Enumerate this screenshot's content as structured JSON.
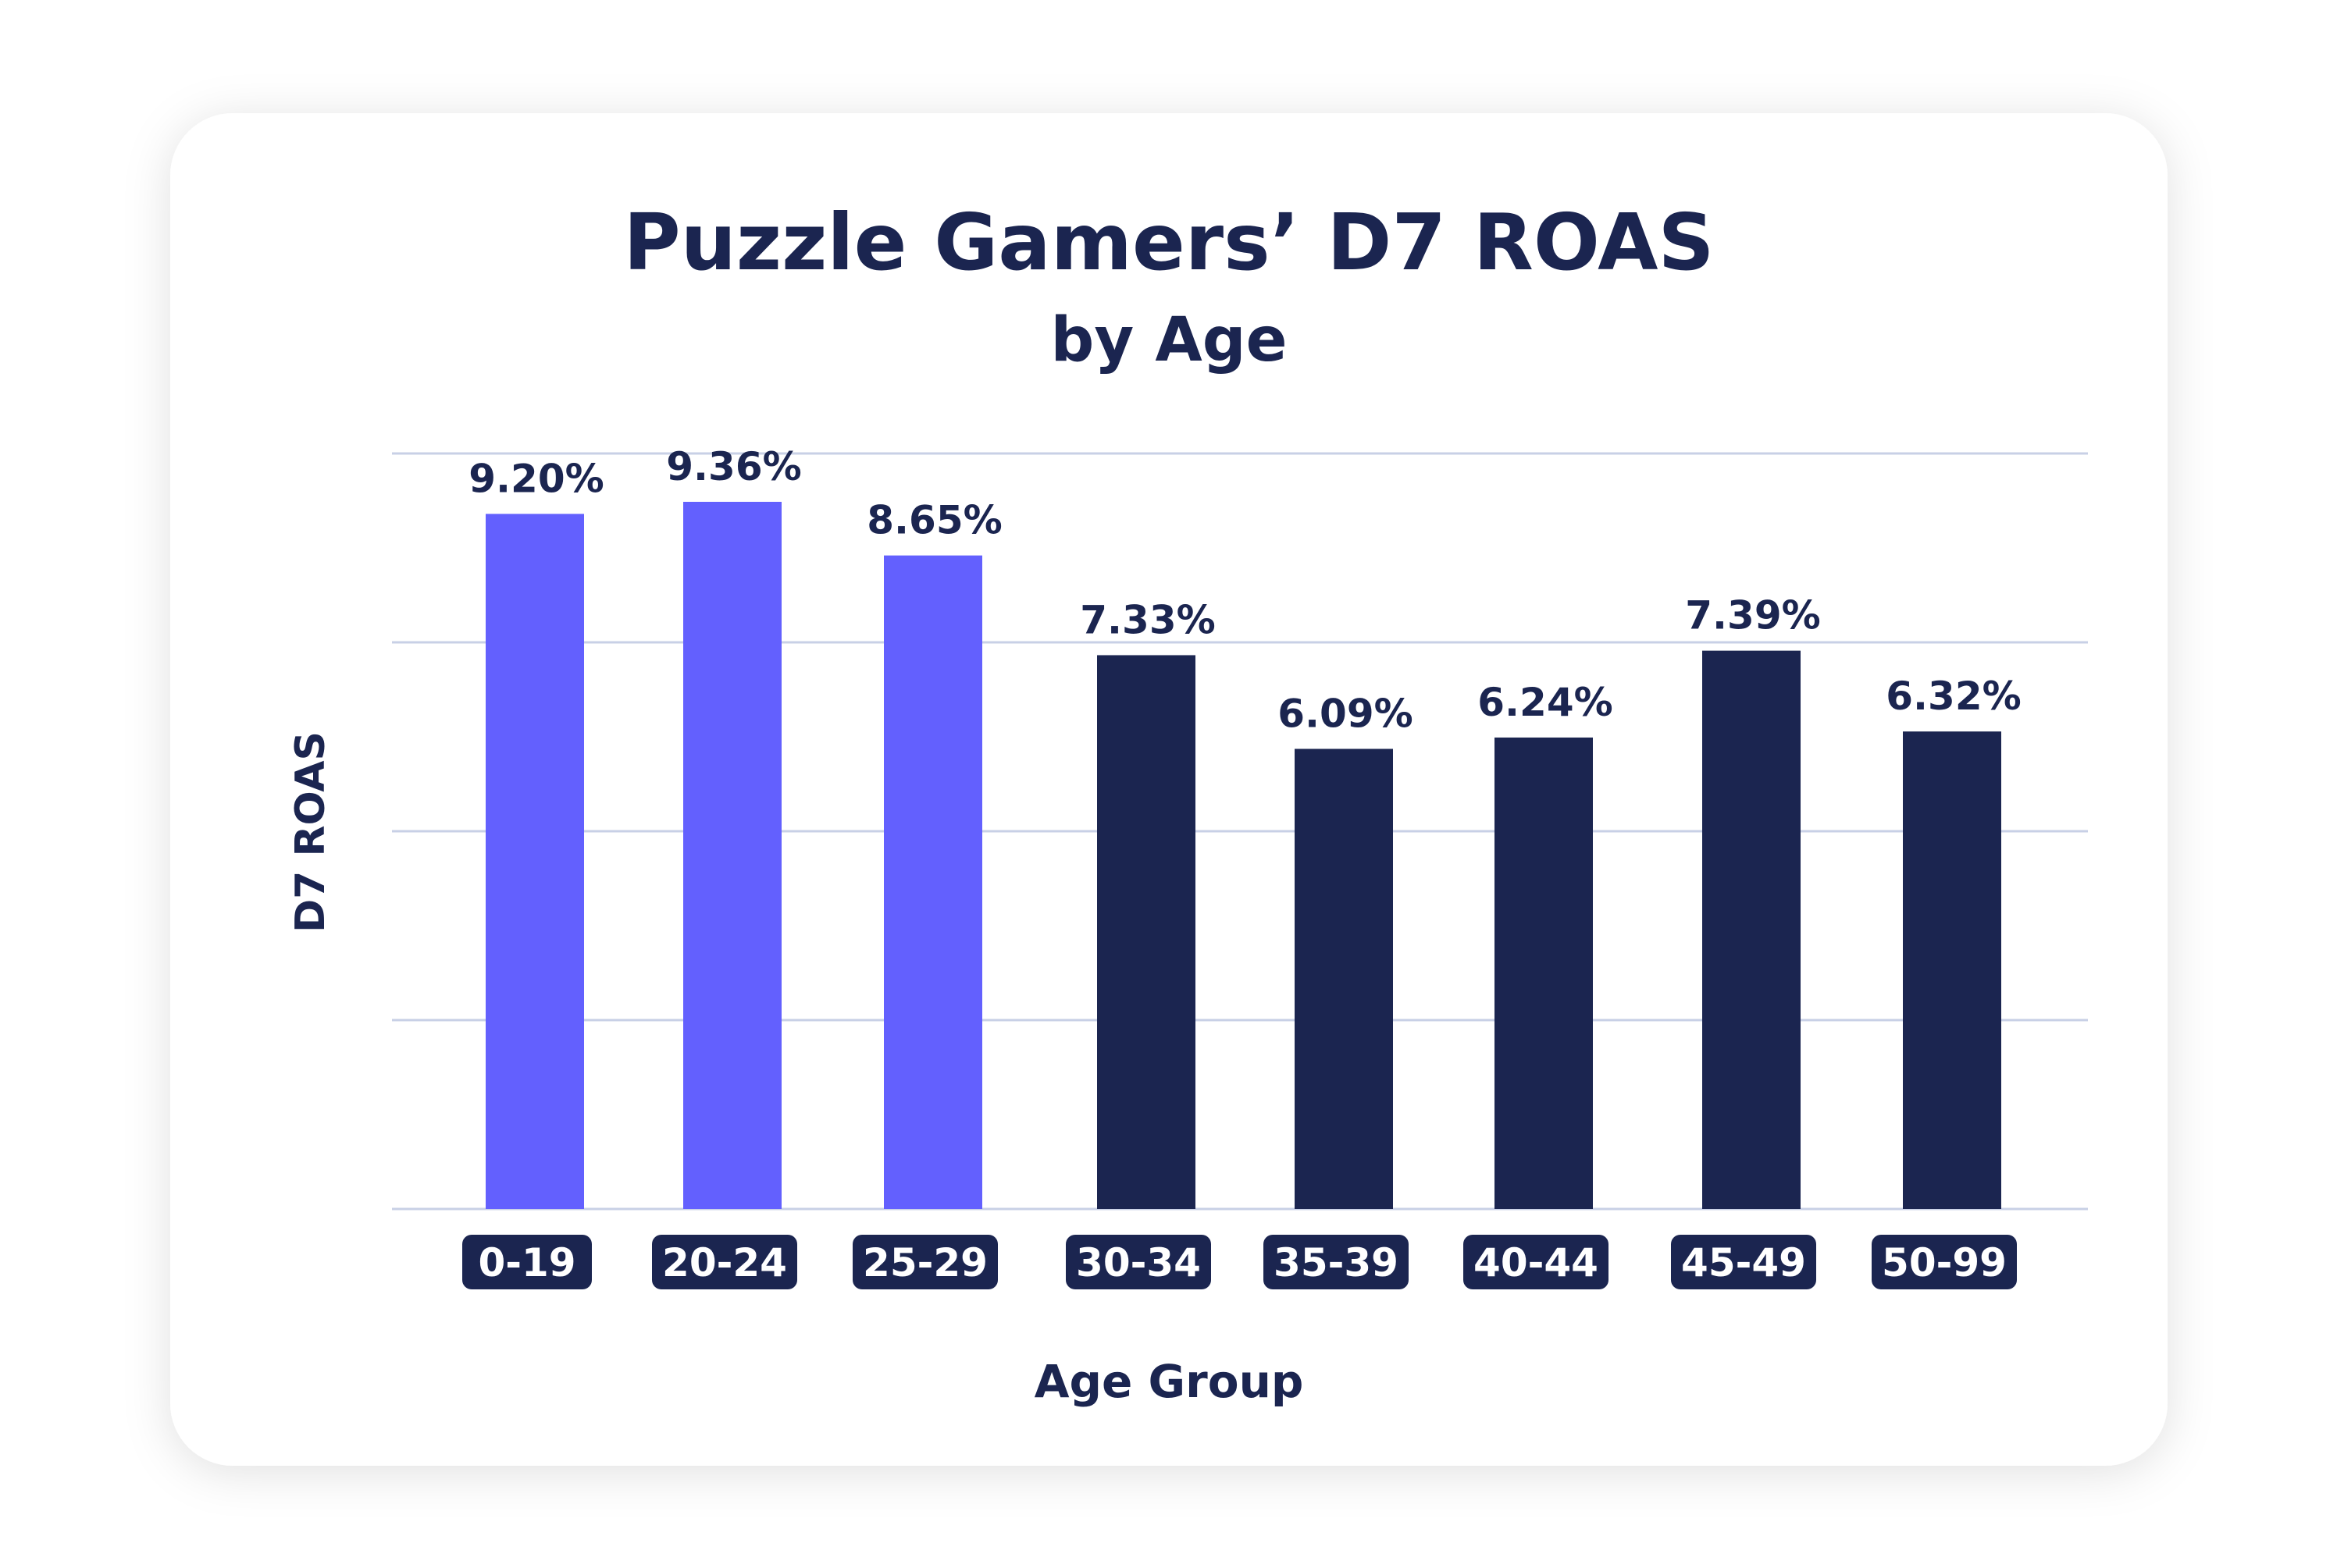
{
  "chart_data": {
    "type": "bar",
    "title": "Puzzle Gamers’ D7 ROAS",
    "subtitle": "by Age",
    "xlabel": "Age Group",
    "ylabel": "D7 ROAS",
    "categories": [
      "0-19",
      "20-24",
      "25-29",
      "30-34",
      "35-39",
      "40-44",
      "45-49",
      "50-99"
    ],
    "values": [
      9.2,
      9.36,
      8.65,
      7.33,
      6.09,
      6.24,
      7.39,
      6.32
    ],
    "value_labels": [
      "9.20%",
      "9.36%",
      "8.65%",
      "7.33%",
      "6.09%",
      "6.24%",
      "7.39%",
      "6.32%"
    ],
    "ylim": [
      0,
      10
    ],
    "gridlines": [
      0,
      2.5,
      5,
      7.5,
      10
    ],
    "grid": true,
    "y_tick_labels_shown": false,
    "colors": {
      "highlight": "#6360fe",
      "default": "#1b2550",
      "grid": "#c8d0e6",
      "text": "#1b2550"
    },
    "highlighted_categories": [
      "0-19",
      "20-24",
      "25-29"
    ]
  }
}
